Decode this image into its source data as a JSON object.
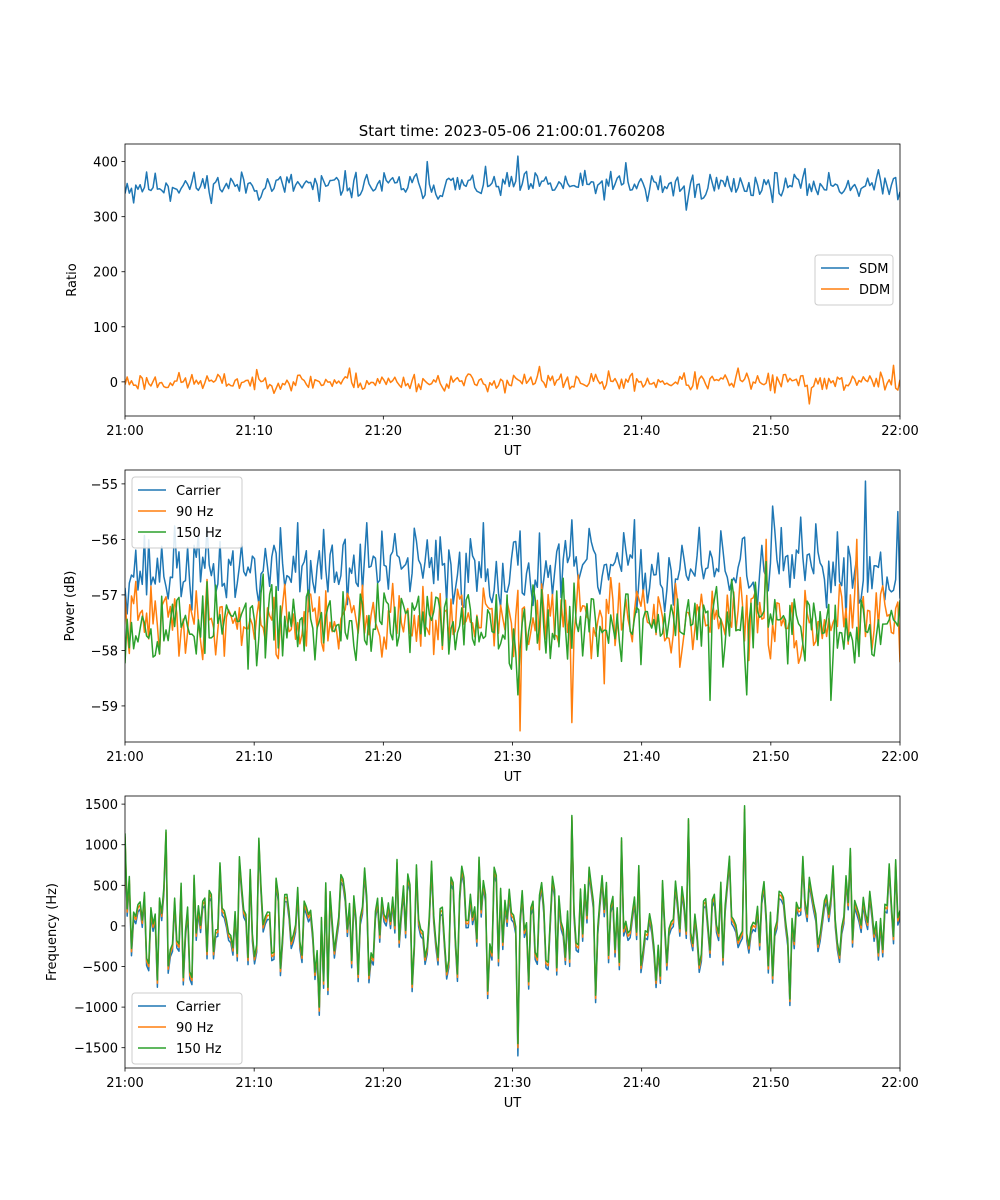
{
  "figure": {
    "title": "Start time: 2023-05-06 21:00:01.760208"
  },
  "colors": {
    "blue": "#1f77b4",
    "orange": "#ff7f0e",
    "green": "#2ca02c"
  },
  "chart_data": [
    {
      "type": "line",
      "title": "Start time: 2023-05-06 21:00:01.760208",
      "xlabel": "UT",
      "ylabel": "Ratio",
      "xlim": [
        "21:00",
        "22:00"
      ],
      "xticks": [
        "21:00",
        "21:10",
        "21:20",
        "21:30",
        "21:40",
        "21:50",
        "22:00"
      ],
      "ylim": [
        -62,
        432
      ],
      "yticks": [
        "400",
        "300",
        "200",
        "100",
        "0"
      ],
      "ytick_values": [
        400,
        300,
        200,
        100,
        0
      ],
      "grid": false,
      "legend_position": "center-right",
      "samples_per_series": 360,
      "series": [
        {
          "name": "SDM",
          "color": "#1f77b4",
          "mean": 357,
          "noise": 12,
          "seed": 11,
          "spikes": [
            [
              4,
              325
            ],
            [
              21,
              328
            ],
            [
              62,
              330
            ],
            [
              90,
              328
            ],
            [
              140,
              400
            ],
            [
              145,
              332
            ],
            [
              182,
              410
            ],
            [
              232,
              398
            ],
            [
              242,
              328
            ],
            [
              260,
              312
            ],
            [
              264,
              335
            ]
          ]
        },
        {
          "name": "DDM",
          "color": "#ff7f0e",
          "mean": 0,
          "noise": 8,
          "seed": 23,
          "spikes": [
            [
              104,
              25
            ],
            [
              176,
              -20
            ],
            [
              192,
              28
            ],
            [
              284,
              25
            ],
            [
              301,
              -20
            ],
            [
              317,
              -40
            ],
            [
              356,
              30
            ],
            [
              358,
              -15
            ]
          ]
        }
      ]
    },
    {
      "type": "line",
      "xlabel": "UT",
      "ylabel": "Power (dB)",
      "xlim": [
        "21:00",
        "22:00"
      ],
      "xticks": [
        "21:00",
        "21:10",
        "21:20",
        "21:30",
        "21:40",
        "21:50",
        "22:00"
      ],
      "ylim": [
        -59.65,
        -54.75
      ],
      "yticks": [
        "−55",
        "−56",
        "−57",
        "−58",
        "−59"
      ],
      "ytick_values": [
        -55,
        -56,
        -57,
        -58,
        -59
      ],
      "grid": false,
      "legend_position": "upper-left",
      "samples_per_series": 360,
      "series": [
        {
          "name": "Carrier",
          "color": "#1f77b4",
          "mean": -56.55,
          "noise": 0.35,
          "seed": 37,
          "spikes": [
            [
              80,
              -55.7
            ],
            [
              112,
              -55.7
            ],
            [
              134,
              -55.8
            ],
            [
              166,
              -55.7
            ],
            [
              250,
              -57.3
            ],
            [
              300,
              -55.4
            ],
            [
              313,
              -55.6
            ],
            [
              343,
              -54.95
            ],
            [
              358,
              -55.5
            ]
          ]
        },
        {
          "name": "90 Hz",
          "color": "#ff7f0e",
          "mean": -57.45,
          "noise": 0.33,
          "seed": 41,
          "spikes": [
            [
              183,
              -59.45
            ],
            [
              207,
              -59.3
            ],
            [
              222,
              -58.6
            ],
            [
              297,
              -56.0
            ],
            [
              339,
              -56.0
            ],
            [
              336,
              -57.0
            ]
          ]
        },
        {
          "name": "150 Hz",
          "color": "#2ca02c",
          "mean": -57.5,
          "noise": 0.35,
          "seed": 53,
          "spikes": [
            [
              182,
              -58.8
            ],
            [
              203,
              -56.7
            ],
            [
              271,
              -58.9
            ],
            [
              288,
              -58.8
            ],
            [
              297,
              -56.4
            ],
            [
              327,
              -58.9
            ],
            [
              347,
              -58.1
            ]
          ]
        }
      ]
    },
    {
      "type": "line",
      "xlabel": "UT",
      "ylabel": "Frequency (Hz)",
      "xlim": [
        "21:00",
        "22:00"
      ],
      "xticks": [
        "21:00",
        "21:10",
        "21:20",
        "21:30",
        "21:40",
        "21:50",
        "22:00"
      ],
      "ylim": [
        -1750,
        1600
      ],
      "yticks": [
        "1500",
        "1000",
        "500",
        "0",
        "−500",
        "−1000",
        "−1500"
      ],
      "ytick_values": [
        1500,
        1000,
        500,
        0,
        -500,
        -1000,
        -1500
      ],
      "grid": false,
      "legend_position": "lower-left",
      "samples_per_series": 360,
      "series": [
        {
          "name": "Carrier",
          "color": "#1f77b4",
          "mean": -30,
          "noise": 360,
          "seed": 71,
          "spikes": [
            [
              0,
              1050
            ],
            [
              19,
              1100
            ],
            [
              62,
              1000
            ],
            [
              90,
              -1100
            ],
            [
              182,
              -1600
            ],
            [
              207,
              1300
            ],
            [
              261,
              1250
            ],
            [
              287,
              1400
            ],
            [
              308,
              -980
            ]
          ]
        },
        {
          "name": "90 Hz",
          "color": "#ff7f0e",
          "mean": 20,
          "noise": 360,
          "seed": 71,
          "spikes": [
            [
              0,
              1100
            ],
            [
              19,
              1150
            ],
            [
              62,
              1050
            ],
            [
              90,
              -1050
            ],
            [
              182,
              -1500
            ],
            [
              207,
              1340
            ],
            [
              261,
              1300
            ],
            [
              287,
              1440
            ],
            [
              308,
              -930
            ]
          ]
        },
        {
          "name": "150 Hz",
          "color": "#2ca02c",
          "mean": 60,
          "noise": 360,
          "seed": 71,
          "spikes": [
            [
              0,
              1140
            ],
            [
              19,
              1180
            ],
            [
              62,
              1080
            ],
            [
              90,
              -1000
            ],
            [
              182,
              -1450
            ],
            [
              207,
              1360
            ],
            [
              261,
              1320
            ],
            [
              287,
              1480
            ],
            [
              308,
              -900
            ]
          ]
        }
      ]
    }
  ]
}
